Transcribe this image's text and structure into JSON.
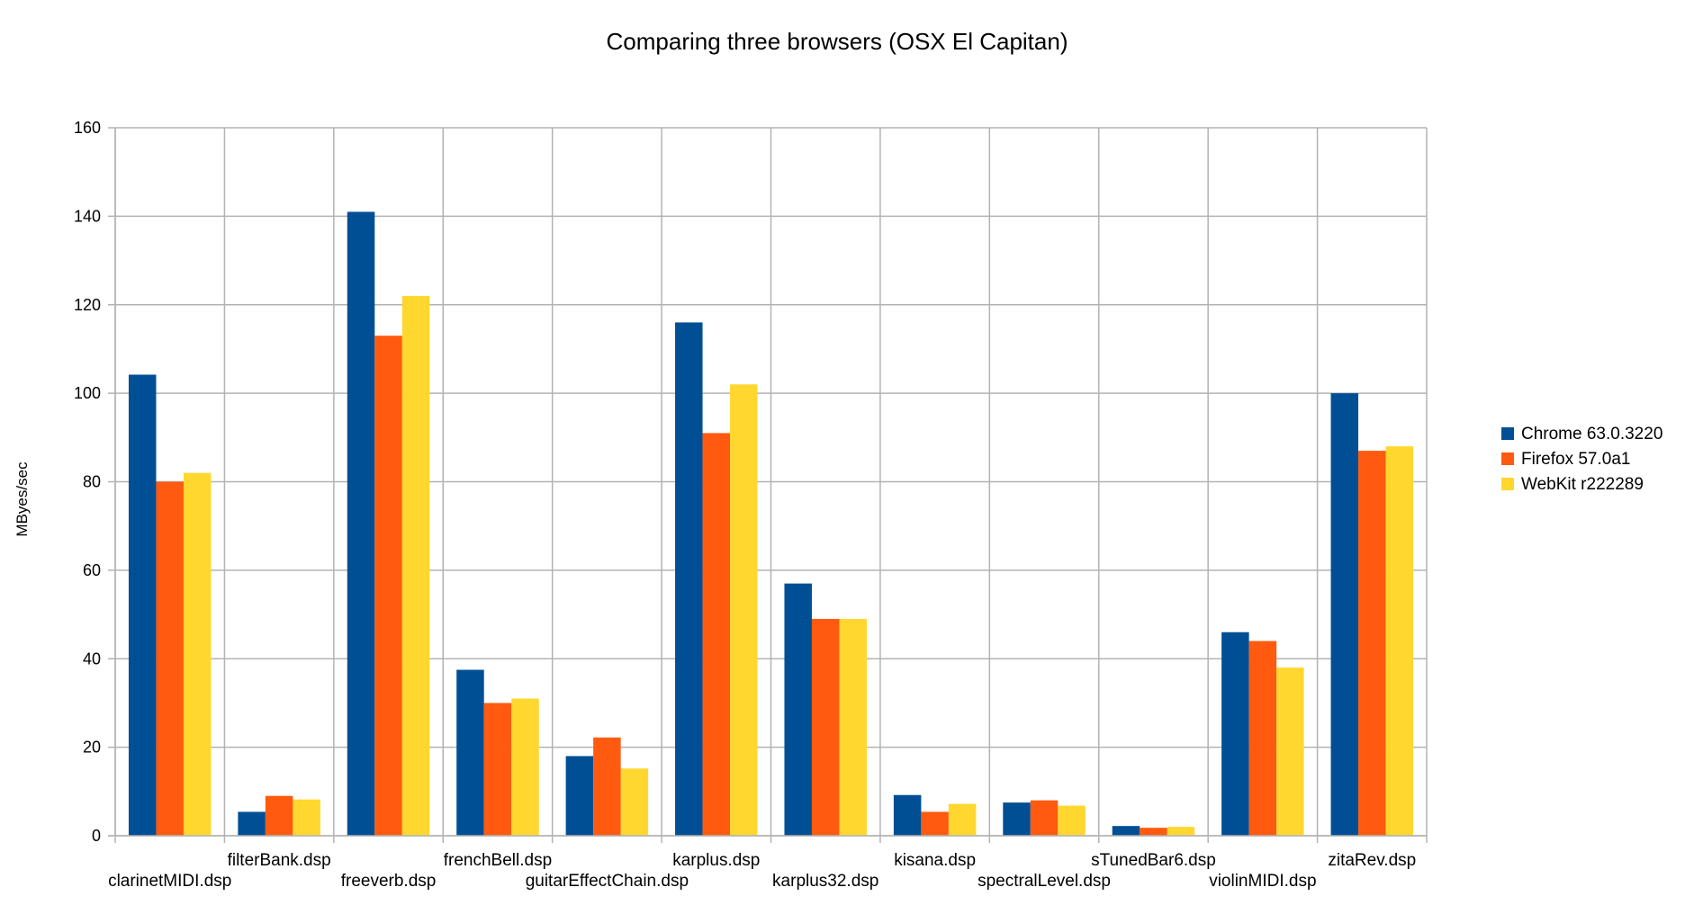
{
  "chart_data": {
    "type": "bar",
    "title": "Comparing three browsers (OSX El Capitan)",
    "xlabel": "",
    "ylabel": "MByes/sec",
    "ylim": [
      0,
      160
    ],
    "yticks": [
      0,
      20,
      40,
      60,
      80,
      100,
      120,
      140,
      160
    ],
    "grid": true,
    "legend_position": "right",
    "categories": [
      "clarinetMIDI.dsp",
      "filterBank.dsp",
      "freeverb.dsp",
      "frenchBell.dsp",
      "guitarEffectChain.dsp",
      "karplus.dsp",
      "karplus32.dsp",
      "kisana.dsp",
      "spectralLevel.dsp",
      "sTunedBar6.dsp",
      "violinMIDI.dsp",
      "zitaRev.dsp"
    ],
    "series": [
      {
        "name": "Chrome  63.0.3220",
        "color": "#004f95",
        "values": [
          104.2,
          5.4,
          141,
          37.5,
          18,
          116,
          57,
          9.2,
          7.5,
          2.2,
          46,
          100
        ]
      },
      {
        "name": "Firefox  57.0a1",
        "color": "#ff5a0f",
        "values": [
          80,
          9,
          113,
          30,
          22.2,
          91,
          49,
          5.4,
          8,
          1.8,
          44,
          87
        ]
      },
      {
        "name": "WebKit  r222289",
        "color": "#ffd72f",
        "values": [
          82,
          8.2,
          122,
          31,
          15.2,
          102,
          49,
          7.2,
          6.8,
          2,
          38,
          88
        ]
      }
    ]
  }
}
